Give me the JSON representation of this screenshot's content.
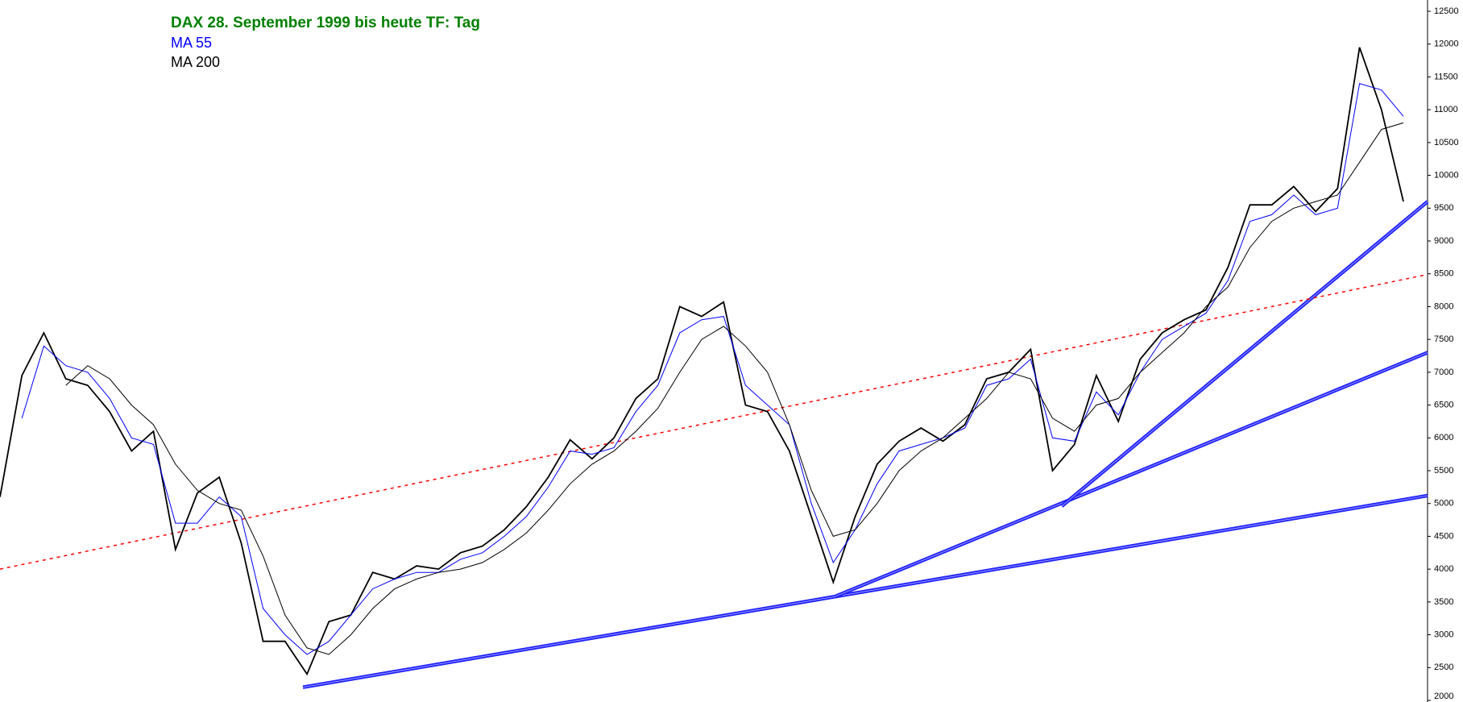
{
  "chart_data": {
    "type": "line",
    "title": "DAX 28. September 1999 bis heute TF: Tag",
    "title_color": "#008000",
    "categories": [
      null,
      null,
      null,
      null,
      null,
      null,
      null,
      null,
      null,
      null,
      null,
      null,
      null,
      null,
      null,
      null,
      null,
      null,
      null,
      null,
      null,
      null,
      null,
      null,
      null,
      null,
      null,
      null,
      null,
      null,
      null,
      null,
      null,
      null,
      null,
      null,
      null,
      null,
      null,
      null,
      null,
      null,
      null,
      null,
      null,
      null,
      null,
      null,
      null,
      null,
      null,
      null,
      null,
      null,
      null,
      null,
      null,
      null,
      null,
      null,
      null,
      null,
      null,
      null,
      null
    ],
    "series": [
      {
        "color": "#000000",
        "values": [
          5100,
          6950,
          7600,
          6900,
          6800,
          6400,
          5800,
          6100,
          4300,
          5160,
          5400,
          4400,
          2900,
          2900,
          2400,
          3200,
          3300,
          3950,
          3850,
          4050,
          4000,
          4250,
          4350,
          4600,
          4950,
          5400,
          5970,
          5680,
          6000,
          6600,
          6900,
          8000,
          7850,
          8070,
          6500,
          6400,
          5800,
          4800,
          3800,
          4800,
          5600,
          5950,
          6150,
          5950,
          6200,
          6900,
          7000,
          7350,
          5500,
          5900,
          6950,
          6250,
          7200,
          7600,
          7800,
          7950,
          8600,
          9550,
          9550,
          9830,
          9450,
          9800,
          11950,
          11000,
          9600
        ]
      },
      {
        "name": "MA 55",
        "color": "#0000ff",
        "values": [
          null,
          6300,
          7400,
          7100,
          7000,
          6600,
          6000,
          5900,
          4700,
          4700,
          5100,
          4800,
          3400,
          3000,
          2700,
          2900,
          3300,
          3700,
          3850,
          3950,
          3950,
          4150,
          4250,
          4500,
          4800,
          5250,
          5800,
          5750,
          5850,
          6400,
          6800,
          7600,
          7800,
          7850,
          6800,
          6500,
          6200,
          5000,
          4100,
          4600,
          5300,
          5800,
          5900,
          6000,
          6150,
          6800,
          6900,
          7200,
          6000,
          5950,
          6700,
          6350,
          7000,
          7500,
          7700,
          7900,
          8400,
          9300,
          9400,
          9700,
          9400,
          9500,
          11400,
          11300,
          10900
        ]
      },
      {
        "name": "MA 200",
        "color": "#000000",
        "values": [
          null,
          null,
          null,
          6800,
          7100,
          6900,
          6500,
          6200,
          5600,
          5200,
          5000,
          4900,
          4200,
          3300,
          2800,
          2700,
          3000,
          3400,
          3700,
          3850,
          3950,
          4000,
          4100,
          4300,
          4550,
          4900,
          5300,
          5600,
          5800,
          6100,
          6450,
          7000,
          7500,
          7700,
          7400,
          7000,
          6200,
          5200,
          4500,
          4600,
          5000,
          5500,
          5800,
          6000,
          6300,
          6600,
          7000,
          6900,
          6300,
          6100,
          6500,
          6600,
          7000,
          7300,
          7600,
          8000,
          8300,
          8900,
          9300,
          9500,
          9600,
          9700,
          10200,
          10700,
          10800
        ]
      }
    ],
    "trendlines": [
      {
        "color": "#1f1fff",
        "values": [
          2200,
          5120
        ]
      },
      {
        "color": "#1f1fff",
        "values": [
          3580,
          7300
        ]
      },
      {
        "color": "#1f1fff",
        "values": [
          4960,
          9600
        ]
      },
      {
        "color": "#ff0000",
        "dashed": true,
        "values": [
          4000,
          8490
        ]
      }
    ],
    "ylim": [
      2000,
      12500
    ],
    "yticks": [
      2000,
      2500,
      3000,
      3500,
      4000,
      4500,
      5000,
      5500,
      6000,
      6500,
      7000,
      7500,
      8000,
      8500,
      9000,
      9500,
      10000,
      10500,
      11000,
      11500,
      12000,
      12500
    ]
  }
}
